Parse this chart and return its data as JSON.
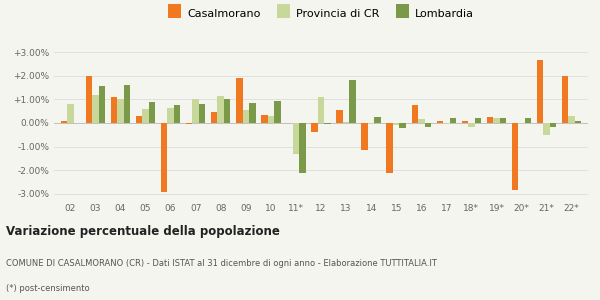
{
  "categories": [
    "02",
    "03",
    "04",
    "05",
    "06",
    "07",
    "08",
    "09",
    "10",
    "11*",
    "12",
    "13",
    "14",
    "15",
    "16",
    "17",
    "18*",
    "19*",
    "20*",
    "21*",
    "22*"
  ],
  "casalmorano": [
    0.1,
    2.0,
    1.1,
    0.3,
    -2.9,
    -0.05,
    0.45,
    1.9,
    0.35,
    0.0,
    -0.4,
    0.55,
    -1.15,
    -2.1,
    0.75,
    0.1,
    0.1,
    0.25,
    -2.85,
    2.65,
    2.0
  ],
  "provincia_cr": [
    0.8,
    1.2,
    1.0,
    0.6,
    0.65,
    1.0,
    1.15,
    0.55,
    0.3,
    -1.3,
    1.1,
    0.05,
    -0.05,
    -0.1,
    0.15,
    -0.05,
    -0.15,
    0.2,
    -0.05,
    -0.5,
    0.3
  ],
  "lombardia": [
    0.0,
    1.55,
    1.6,
    0.9,
    0.75,
    0.8,
    1.0,
    0.85,
    0.95,
    -2.1,
    -0.05,
    1.8,
    0.25,
    -0.2,
    -0.15,
    0.2,
    0.2,
    0.2,
    0.2,
    -0.15,
    0.1
  ],
  "color_casalmorano": "#f07820",
  "color_provincia": "#c8d89a",
  "color_lombardia": "#7a9a4a",
  "title": "Variazione percentuale della popolazione",
  "subtitle": "COMUNE DI CASALMORANO (CR) - Dati ISTAT al 31 dicembre di ogni anno - Elaborazione TUTTITALIA.IT",
  "footnote": "(*) post-censimento",
  "legend_labels": [
    "Casalmorano",
    "Provincia di CR",
    "Lombardia"
  ],
  "ylim": [
    -3.3,
    3.3
  ],
  "yticks": [
    -3.0,
    -2.0,
    -1.0,
    0.0,
    1.0,
    2.0,
    3.0
  ],
  "background_color": "#f5f5f0",
  "bar_width": 0.26
}
